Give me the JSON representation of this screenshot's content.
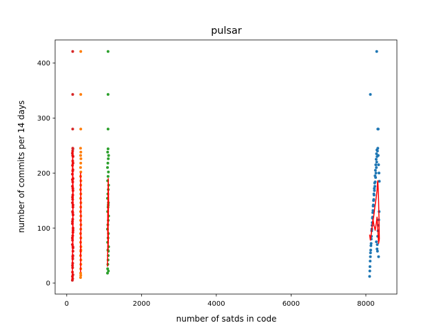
{
  "chart_data": {
    "type": "scatter",
    "title": "pulsar",
    "xlabel": "number of satds in code",
    "ylabel": "number of commits per 14 days",
    "xlim": [
      -310,
      8830
    ],
    "ylim": [
      -20,
      442
    ],
    "xticks": [
      0,
      2000,
      4000,
      6000,
      8000
    ],
    "yticks": [
      0,
      100,
      200,
      300,
      400
    ],
    "grid": false,
    "legend": "none",
    "series": [
      {
        "color": "#d62728",
        "x": [
          150,
          152,
          155,
          158,
          160,
          162,
          165,
          168,
          170,
          150,
          155,
          160,
          165,
          170,
          150,
          160,
          170,
          155,
          165,
          150,
          158,
          162,
          168,
          152,
          160,
          170,
          150,
          165,
          155,
          160,
          170,
          150,
          158,
          162,
          168,
          155,
          160,
          165,
          150,
          170,
          152,
          160,
          168,
          155,
          163,
          150,
          160,
          170,
          158,
          165,
          160,
          160,
          160,
          160
        ],
        "y": [
          5,
          12,
          20,
          28,
          36,
          44,
          50,
          58,
          64,
          70,
          78,
          86,
          92,
          100,
          108,
          116,
          124,
          130,
          138,
          146,
          152,
          160,
          168,
          176,
          184,
          190,
          198,
          206,
          214,
          222,
          230,
          236,
          240,
          245,
          15,
          32,
          48,
          66,
          82,
          96,
          112,
          128,
          142,
          156,
          172,
          188,
          204,
          218,
          232,
          244,
          280,
          343,
          421,
          8
        ]
      },
      {
        "color": "#ff7f0e",
        "x": [
          370,
          372,
          375,
          378,
          380,
          370,
          375,
          380,
          372,
          378,
          370,
          375,
          380,
          372,
          378,
          370,
          375,
          380,
          372,
          378,
          370,
          375,
          380,
          372,
          378,
          370,
          375,
          380,
          372,
          378,
          370,
          375,
          380,
          375,
          375,
          375
        ],
        "y": [
          10,
          18,
          26,
          34,
          42,
          50,
          58,
          66,
          74,
          82,
          90,
          98,
          106,
          114,
          122,
          130,
          138,
          146,
          154,
          162,
          170,
          178,
          186,
          194,
          202,
          210,
          218,
          226,
          232,
          238,
          245,
          14,
          60,
          280,
          343,
          421
        ]
      },
      {
        "color": "#2ca02c",
        "x": [
          1090,
          1095,
          1100,
          1105,
          1110,
          1115,
          1120,
          1095,
          1105,
          1115,
          1090,
          1100,
          1110,
          1120,
          1095,
          1105,
          1115,
          1090,
          1100,
          1110,
          1120,
          1095,
          1105,
          1115,
          1090,
          1100,
          1110,
          1120,
          1095,
          1105,
          1115,
          1100,
          1110,
          1105,
          1105,
          1105
        ],
        "y": [
          18,
          26,
          34,
          42,
          50,
          58,
          66,
          74,
          82,
          90,
          98,
          106,
          114,
          122,
          130,
          138,
          146,
          154,
          162,
          170,
          178,
          186,
          194,
          202,
          210,
          218,
          226,
          232,
          238,
          244,
          22,
          60,
          142,
          280,
          343,
          421
        ]
      },
      {
        "color": "#1f77b4",
        "x": [
          8100,
          8110,
          8120,
          8130,
          8140,
          8150,
          8160,
          8170,
          8180,
          8190,
          8200,
          8210,
          8220,
          8230,
          8240,
          8250,
          8260,
          8270,
          8280,
          8290,
          8300,
          8310,
          8320,
          8330,
          8340,
          8350,
          8360,
          8105,
          8115,
          8125,
          8135,
          8145,
          8155,
          8165,
          8175,
          8185,
          8195,
          8205,
          8215,
          8225,
          8235,
          8245,
          8255,
          8265,
          8275,
          8285,
          8295,
          8305,
          8315,
          8325,
          8335,
          8345,
          8355,
          8290,
          8320,
          8330,
          8120,
          8280,
          8300,
          8310,
          8340
        ],
        "y": [
          12,
          30,
          48,
          60,
          72,
          85,
          98,
          110,
          120,
          132,
          142,
          152,
          160,
          168,
          176,
          184,
          192,
          200,
          210,
          220,
          230,
          240,
          245,
          232,
          215,
          200,
          185,
          22,
          40,
          55,
          68,
          80,
          95,
          105,
          118,
          128,
          140,
          150,
          162,
          172,
          182,
          195,
          205,
          215,
          225,
          235,
          242,
          70,
          85,
          95,
          105,
          115,
          130,
          421,
          280,
          280,
          343,
          75,
          62,
          58,
          48
        ]
      },
      {
        "type": "line",
        "color": "#ff0000",
        "x": [
          150,
          155,
          160,
          165,
          170,
          165,
          160,
          155,
          160,
          165,
          170,
          160,
          155,
          160,
          165
        ],
        "y": [
          5,
          40,
          80,
          120,
          160,
          200,
          240,
          210,
          170,
          130,
          90,
          60,
          30,
          100,
          140
        ]
      },
      {
        "type": "line",
        "color": "#ff0000",
        "x": [
          370,
          375,
          380,
          375,
          370,
          375,
          380,
          375,
          370,
          378
        ],
        "y": [
          20,
          60,
          110,
          160,
          200,
          170,
          120,
          80,
          50,
          90
        ]
      },
      {
        "type": "line",
        "color": "#ff0000",
        "x": [
          1090,
          1100,
          1110,
          1120,
          1110,
          1100,
          1095,
          1105,
          1115,
          1100
        ],
        "y": [
          30,
          70,
          110,
          150,
          190,
          140,
          100,
          60,
          80,
          120
        ]
      },
      {
        "type": "line",
        "color": "#ff0000",
        "x": [
          8100,
          8120,
          8150,
          8180,
          8210,
          8240,
          8270,
          8300,
          8310,
          8320,
          8330,
          8340,
          8350,
          8360,
          8340,
          8320,
          8300,
          8280,
          8250,
          8220,
          8190,
          8160,
          8130,
          8100
        ],
        "y": [
          88,
          78,
          92,
          108,
          122,
          138,
          152,
          168,
          182,
          186,
          170,
          150,
          118,
          80,
          72,
          98,
          120,
          110,
          96,
          104,
          116,
          98,
          82,
          82
        ]
      }
    ]
  }
}
